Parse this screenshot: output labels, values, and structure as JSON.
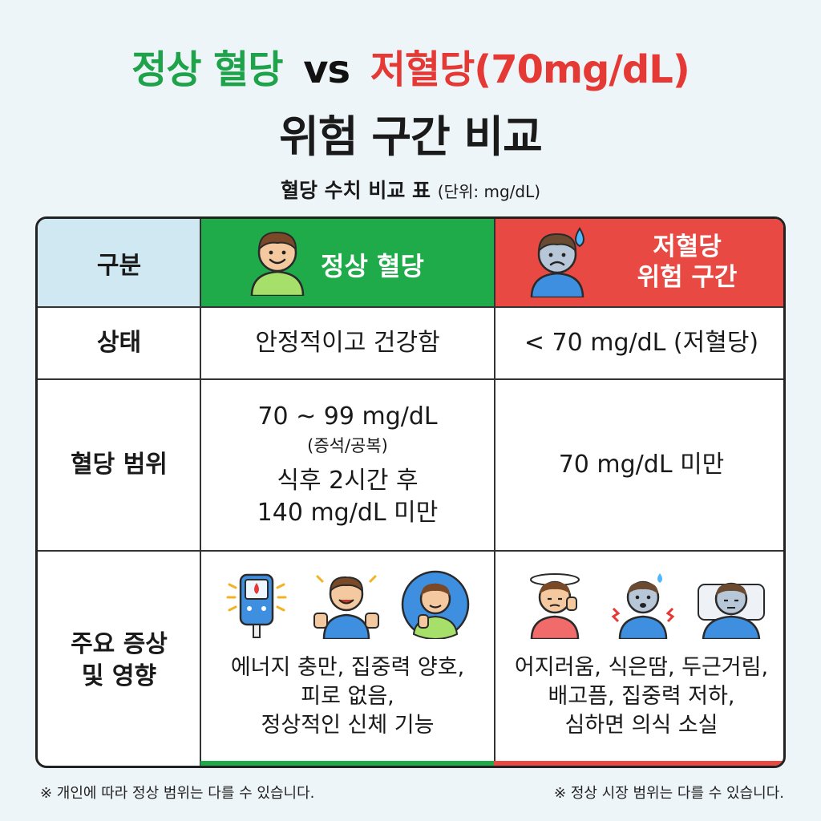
{
  "title": {
    "normal": "정상 혈당",
    "vs": "vs",
    "low": "저혈당(70mg/dL)",
    "line2": "위험 구간 비교"
  },
  "subtitle": {
    "main": "혈당 수치 비교 표",
    "unit": "(단위: mg/dL)"
  },
  "table": {
    "header": {
      "label": "구분",
      "normal": "정상 혈당",
      "low_line1": "저혈당",
      "low_line2": "위험 구간"
    },
    "rows": {
      "status": {
        "label": "상태",
        "normal": "안정적이고 건강함",
        "low": "< 70 mg/dL (저혈당)"
      },
      "range": {
        "label": "혈당 범위",
        "normal_line1": "70 ~ 99 mg/dL",
        "normal_line2": "(증석/공복)",
        "normal_line3": "식후 2시간 후",
        "normal_line4": "140 mg/dL 미만",
        "low": "70 mg/dL 미만"
      },
      "symptoms": {
        "label_line1": "주요 증상",
        "label_line2": "및 영향",
        "normal_line1": "에너지 충만, 집중력 양호,",
        "normal_line2": "피로 없음,",
        "normal_line3": "정상적인 신체 기능",
        "low_line1": "어지러움, 식은땀, 두근거림,",
        "low_line2": "배고픔, 집중력 저하,",
        "low_line3": "심하면 의식 소실"
      }
    }
  },
  "footnotes": {
    "left": "※ 개인에 따라 정상 범위는 다를 수 있습니다.",
    "right": "※ 정상 시장 범위는 다를 수 있습니다."
  },
  "colors": {
    "green": "#1fab4a",
    "red": "#e84a43",
    "label_bg": "#cfe8f2"
  },
  "icons": [
    "happy-person-icon",
    "sweating-person-icon",
    "glucose-meter-icon",
    "thumbs-up-person-icon",
    "thinking-person-icon",
    "dizzy-person-icon",
    "palpitation-person-icon",
    "lying-in-bed-person-icon"
  ]
}
